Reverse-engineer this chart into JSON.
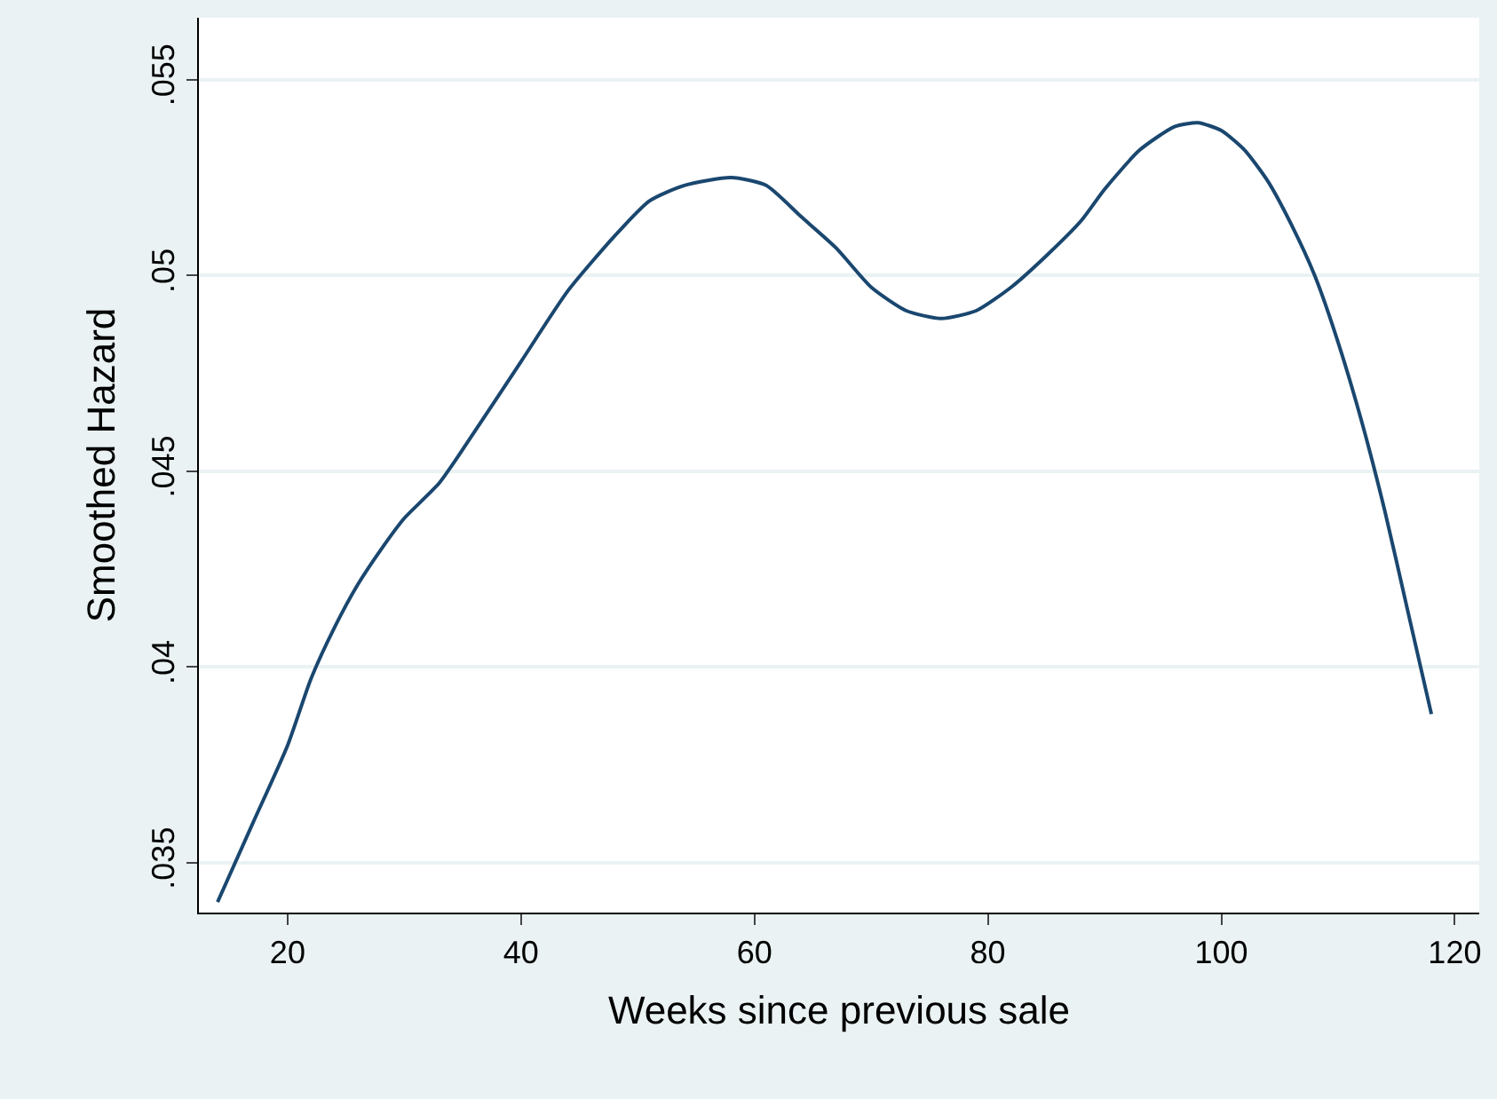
{
  "chart_data": {
    "type": "line",
    "xlabel": "Weeks since previous sale",
    "ylabel": "Smoothed Hazard",
    "x": [
      14,
      17,
      20,
      22,
      24,
      26,
      28,
      30,
      33,
      36,
      40,
      44,
      48,
      51,
      54,
      58,
      61,
      64,
      67,
      70,
      73,
      76,
      79,
      82,
      85,
      88,
      90,
      93,
      96,
      98,
      100,
      102,
      104,
      106,
      108,
      110,
      112,
      114,
      116,
      118
    ],
    "series": [
      {
        "color": "#1a476f",
        "values": [
          0.034,
          0.036,
          0.038,
          0.0397,
          0.041,
          0.0421,
          0.043,
          0.0438,
          0.0447,
          0.046,
          0.0478,
          0.0496,
          0.051,
          0.0519,
          0.0523,
          0.0525,
          0.0523,
          0.0515,
          0.0507,
          0.0497,
          0.0491,
          0.0489,
          0.0491,
          0.0497,
          0.0505,
          0.0514,
          0.0522,
          0.0532,
          0.0538,
          0.0539,
          0.0537,
          0.0532,
          0.0524,
          0.0513,
          0.05,
          0.0483,
          0.0463,
          0.044,
          0.0414,
          0.0388
        ]
      }
    ],
    "xlim": [
      12.4,
      122.1
    ],
    "ylim": [
      0.03373,
      0.05658
    ],
    "xticks": [
      20,
      40,
      60,
      80,
      100,
      120
    ],
    "yticks": [
      {
        "value": 0.035,
        "label": ".035"
      },
      {
        "value": 0.04,
        "label": ".04"
      },
      {
        "value": 0.045,
        "label": ".045"
      },
      {
        "value": 0.05,
        "label": ".05"
      },
      {
        "value": 0.055,
        "label": ".055"
      }
    ],
    "grid": "y",
    "marker": "none",
    "line_style": "solid"
  }
}
